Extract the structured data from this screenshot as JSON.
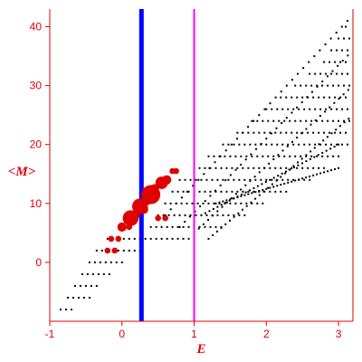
{
  "chart_data": {
    "type": "scatter",
    "xlabel": "E",
    "ylabel": "<M>",
    "xlim": [
      -1,
      3.2
    ],
    "ylim": [
      -10,
      43
    ],
    "x_ticks": [
      -1,
      0,
      1,
      2,
      3
    ],
    "y_ticks": [
      0,
      10,
      20,
      30,
      40
    ],
    "grid": false,
    "colors": {
      "axis": "#e00000",
      "points": "#000000",
      "highlight": "#e00000",
      "line_blue": "#0000ff",
      "line_magenta": "#ff00ff"
    },
    "vertical_lines": [
      {
        "x": 0.27,
        "color": "#0000ff"
      },
      {
        "x": 1.0,
        "color": "#ff00ff"
      }
    ],
    "grid_rows": [
      {
        "y": -8,
        "x0": -0.85,
        "x1": -0.7
      },
      {
        "y": -6,
        "x0": -0.75,
        "x1": -0.45
      },
      {
        "y": -4,
        "x0": -0.65,
        "x1": -0.35
      },
      {
        "y": -2,
        "x0": -0.55,
        "x1": -0.15
      },
      {
        "y": 0,
        "x0": -0.45,
        "x1": 0.05
      },
      {
        "y": 2,
        "x0": -0.35,
        "x1": 0.25
      },
      {
        "y": 4,
        "x0": -0.2,
        "x1": 1.0
      },
      {
        "y": 6,
        "x0": 0.4,
        "x1": 1.4
      },
      {
        "y": 8,
        "x0": 0.5,
        "x1": 1.7
      },
      {
        "y": 10,
        "x0": 0.6,
        "x1": 2.0
      },
      {
        "y": 12,
        "x0": 0.7,
        "x1": 2.3
      },
      {
        "y": 14,
        "x0": 0.8,
        "x1": 2.6
      },
      {
        "y": 16,
        "x0": 1.0,
        "x1": 2.8
      },
      {
        "y": 18,
        "x0": 1.2,
        "x1": 3.0
      },
      {
        "y": 20,
        "x0": 1.4,
        "x1": 3.2
      },
      {
        "y": 22,
        "x0": 1.6,
        "x1": 3.2
      },
      {
        "y": 24,
        "x0": 1.8,
        "x1": 3.2
      },
      {
        "y": 26,
        "x0": 2.0,
        "x1": 3.2
      },
      {
        "y": 28,
        "x0": 2.2,
        "x1": 3.2
      },
      {
        "y": 30,
        "x0": 2.4,
        "x1": 3.2
      },
      {
        "y": 32,
        "x0": 2.6,
        "x1": 3.2
      },
      {
        "y": 34,
        "x0": 2.8,
        "x1": 3.2
      },
      {
        "y": 36,
        "x0": 2.9,
        "x1": 3.2
      },
      {
        "y": 38,
        "x0": 3.0,
        "x1": 3.2
      },
      {
        "y": 40,
        "x0": 3.1,
        "x1": 3.2
      }
    ],
    "diagonal_bands": [
      {
        "x0": 0.6,
        "y0": 8,
        "x1": 3.2,
        "y1": 42
      },
      {
        "x0": 0.8,
        "y0": 6,
        "x1": 3.2,
        "y1": 36
      },
      {
        "x0": 1.0,
        "y0": 5,
        "x1": 3.2,
        "y1": 30
      },
      {
        "x0": 1.2,
        "y0": 4,
        "x1": 3.2,
        "y1": 25
      },
      {
        "x0": 1.1,
        "y0": 8,
        "x1": 3.0,
        "y1": 20
      },
      {
        "x0": 1.3,
        "y0": 10,
        "x1": 3.0,
        "y1": 16
      }
    ],
    "highlight_points": [
      {
        "x": -0.15,
        "y": 4,
        "size": 1
      },
      {
        "x": -0.05,
        "y": 4,
        "size": 1
      },
      {
        "x": 0.0,
        "y": 6,
        "size": 2
      },
      {
        "x": 0.1,
        "y": 6,
        "size": 1
      },
      {
        "x": 0.12,
        "y": 7.5,
        "size": 4
      },
      {
        "x": 0.18,
        "y": 8,
        "size": 2
      },
      {
        "x": 0.25,
        "y": 9.5,
        "size": 4
      },
      {
        "x": 0.3,
        "y": 9,
        "size": 2
      },
      {
        "x": 0.35,
        "y": 10.5,
        "size": 2
      },
      {
        "x": 0.4,
        "y": 11.5,
        "size": 5
      },
      {
        "x": 0.45,
        "y": 12.5,
        "size": 2
      },
      {
        "x": 0.55,
        "y": 13.5,
        "size": 3
      },
      {
        "x": 0.62,
        "y": 14,
        "size": 2
      },
      {
        "x": 0.7,
        "y": 15.5,
        "size": 1
      },
      {
        "x": 0.75,
        "y": 15.5,
        "size": 1
      },
      {
        "x": 0.5,
        "y": 7.5,
        "size": 1
      },
      {
        "x": 0.6,
        "y": 7.5,
        "size": 1
      },
      {
        "x": -0.1,
        "y": 2,
        "size": 1
      },
      {
        "x": -0.2,
        "y": 2,
        "size": 1
      }
    ]
  }
}
